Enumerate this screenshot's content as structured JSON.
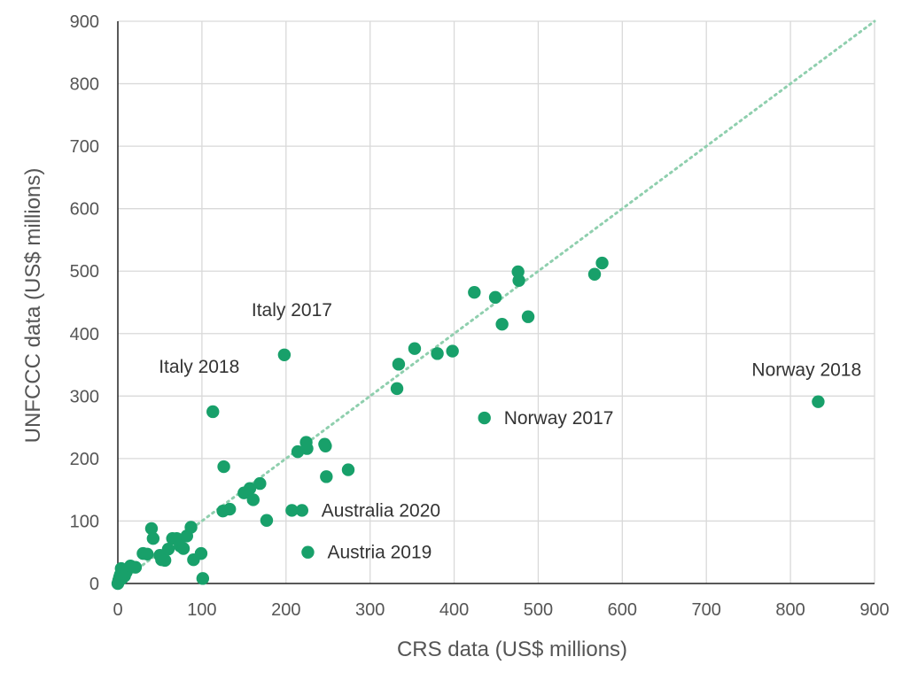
{
  "chart_data": {
    "type": "scatter",
    "title": "",
    "xlabel": "CRS data (US$ millions)",
    "ylabel": "UNFCCC data (US$ millions)",
    "xlim": [
      0,
      900
    ],
    "ylim": [
      0,
      900
    ],
    "xticks": [
      0,
      100,
      200,
      300,
      400,
      500,
      600,
      700,
      800,
      900
    ],
    "yticks": [
      0,
      100,
      200,
      300,
      400,
      500,
      600,
      700,
      800,
      900
    ],
    "grid": true,
    "legend": "none",
    "marker_color": "#18a06a",
    "reference_line": {
      "style": "dotted",
      "color": "#8fcfae",
      "from": [
        0,
        0
      ],
      "to": [
        900,
        900
      ]
    },
    "series": [
      {
        "points": [
          [
            0,
            0
          ],
          [
            1,
            5
          ],
          [
            2,
            10
          ],
          [
            3,
            14
          ],
          [
            4,
            24
          ],
          [
            5,
            8
          ],
          [
            8,
            12
          ],
          [
            10,
            18
          ],
          [
            15,
            28
          ],
          [
            21,
            26
          ],
          [
            30,
            48
          ],
          [
            35,
            47
          ],
          [
            40,
            88
          ],
          [
            42,
            72
          ],
          [
            50,
            45
          ],
          [
            52,
            38
          ],
          [
            56,
            37
          ],
          [
            60,
            55
          ],
          [
            65,
            72
          ],
          [
            70,
            72
          ],
          [
            74,
            60
          ],
          [
            78,
            56
          ],
          [
            82,
            76
          ],
          [
            87,
            90
          ],
          [
            90,
            38
          ],
          [
            99,
            48
          ],
          [
            101,
            8
          ],
          [
            113,
            275
          ],
          [
            125,
            116
          ],
          [
            126,
            187
          ],
          [
            133,
            119
          ],
          [
            150,
            145
          ],
          [
            157,
            152
          ],
          [
            161,
            134
          ],
          [
            169,
            160
          ],
          [
            177,
            101
          ],
          [
            198,
            366
          ],
          [
            207,
            117
          ],
          [
            214,
            211
          ],
          [
            219,
            117
          ],
          [
            224,
            226
          ],
          [
            225,
            216
          ],
          [
            226,
            50
          ],
          [
            246,
            223
          ],
          [
            247,
            220
          ],
          [
            248,
            171
          ],
          [
            274,
            182
          ],
          [
            332,
            312
          ],
          [
            334,
            351
          ],
          [
            353,
            376
          ],
          [
            380,
            368
          ],
          [
            398,
            372
          ],
          [
            424,
            466
          ],
          [
            436,
            265
          ],
          [
            449,
            458
          ],
          [
            457,
            415
          ],
          [
            476,
            499
          ],
          [
            477,
            485
          ],
          [
            488,
            427
          ],
          [
            567,
            495
          ],
          [
            576,
            513
          ],
          [
            833,
            291
          ]
        ]
      }
    ],
    "annotations": [
      {
        "text": "Italy 2017",
        "x": 198,
        "y": 366
      },
      {
        "text": "Italy 2018",
        "x": 113,
        "y": 275
      },
      {
        "text": "Norway 2018",
        "x": 833,
        "y": 291
      },
      {
        "text": "Norway 2017",
        "x": 436,
        "y": 265
      },
      {
        "text": "Australia 2020",
        "x": 219,
        "y": 117
      },
      {
        "text": "Austria 2019",
        "x": 226,
        "y": 50
      }
    ]
  }
}
